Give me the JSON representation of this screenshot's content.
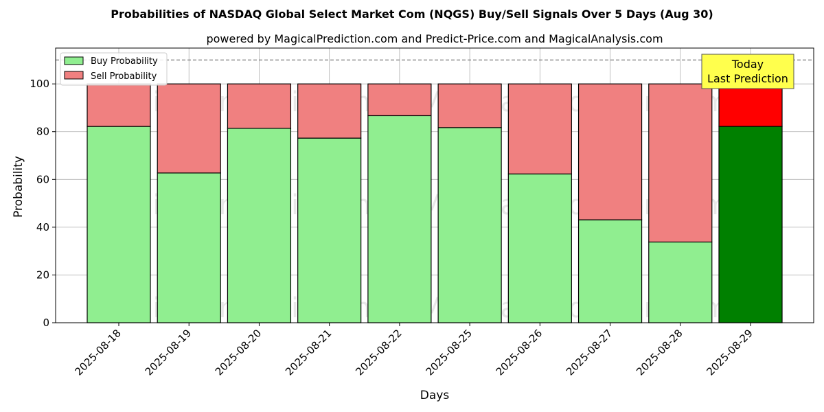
{
  "chart_data": {
    "type": "bar",
    "stacked": true,
    "title": "Probabilities of NASDAQ Global Select Market Com (NQGS) Buy/Sell Signals Over 5 Days (Aug 30)",
    "subtitle": "powered by MagicalPrediction.com and Predict-Price.com and MagicalAnalysis.com",
    "xlabel": "Days",
    "ylabel": "Probability",
    "ylim": [
      0,
      115
    ],
    "yticks": [
      0,
      20,
      40,
      60,
      80,
      100
    ],
    "grid": true,
    "legend_position": "top-left",
    "categories": [
      "2025-08-18",
      "2025-08-19",
      "2025-08-20",
      "2025-08-21",
      "2025-08-22",
      "2025-08-25",
      "2025-08-26",
      "2025-08-27",
      "2025-08-28",
      "2025-08-29"
    ],
    "series": [
      {
        "name": "Buy Probability",
        "values": [
          82.2,
          62.7,
          81.4,
          77.3,
          86.7,
          81.7,
          62.3,
          43.1,
          33.8,
          82.2
        ],
        "color": "#90ee90",
        "highlight_color": "#008000"
      },
      {
        "name": "Sell Probability",
        "values": [
          17.8,
          37.3,
          18.6,
          22.7,
          13.3,
          18.3,
          37.7,
          56.9,
          66.2,
          17.8
        ],
        "color": "#f08080",
        "highlight_color": "#ff0000"
      }
    ],
    "highlight_index": 9,
    "reference_line": {
      "y": 110,
      "style": "dashed"
    },
    "annotation": {
      "line1": "Today",
      "line2": "Last Prediction",
      "background": "#ffff4d"
    },
    "watermarks": [
      "MagicalAnalysis.com",
      "MagicalPrediction.com"
    ]
  }
}
